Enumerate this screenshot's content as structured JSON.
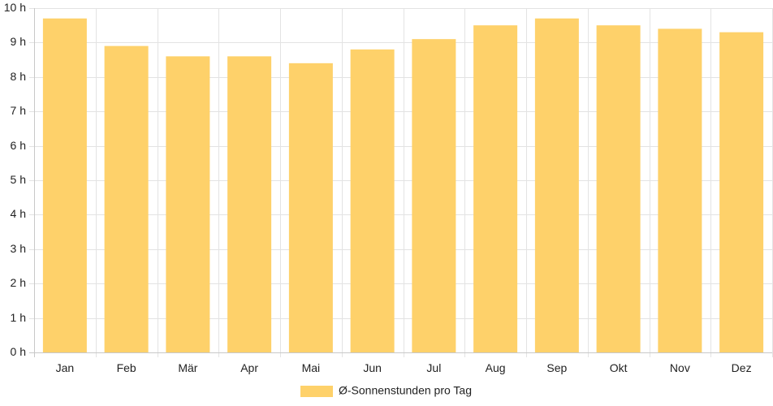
{
  "chart_data": {
    "type": "bar",
    "title": "",
    "xlabel": "",
    "ylabel": "",
    "categories": [
      "Jan",
      "Feb",
      "Mär",
      "Apr",
      "Mai",
      "Jun",
      "Jul",
      "Aug",
      "Sep",
      "Okt",
      "Nov",
      "Dez"
    ],
    "series": [
      {
        "name": "Ø-Sonnenstunden pro Tag",
        "values": [
          9.7,
          8.9,
          8.6,
          8.6,
          8.4,
          8.8,
          9.1,
          9.5,
          9.7,
          9.5,
          9.4,
          9.3
        ],
        "color": "#fed16a"
      }
    ],
    "ylim": [
      0,
      10
    ],
    "y_ticks": [
      0,
      1,
      2,
      3,
      4,
      5,
      6,
      7,
      8,
      9,
      10
    ],
    "y_unit_suffix": " h",
    "grid": true,
    "legend_position": "bottom-center"
  }
}
